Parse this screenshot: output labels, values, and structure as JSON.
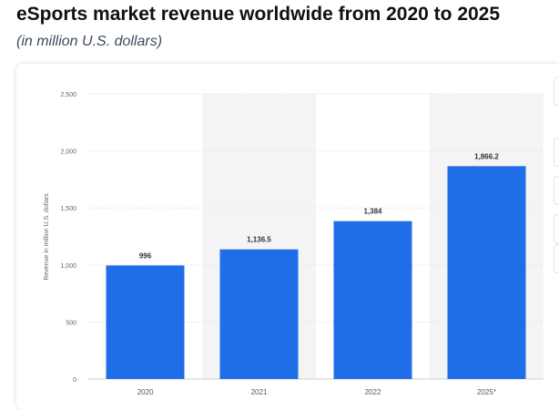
{
  "header": {
    "title": "eSports market revenue worldwide from 2020 to 2025",
    "subtitle": "(in million U.S. dollars)"
  },
  "chart_data": {
    "type": "bar",
    "categories": [
      "2020",
      "2021",
      "2022",
      "2025*"
    ],
    "values": [
      996,
      1136.5,
      1384,
      1866.2
    ],
    "value_labels": [
      "996",
      "1,136.5",
      "1,384",
      "1,866.2"
    ],
    "title": "eSports market revenue worldwide from 2020 to 2025",
    "subtitle": "(in million U.S. dollars)",
    "xlabel": "",
    "ylabel": "Revenue in million U.S. dollars",
    "ylim": [
      0,
      2500
    ],
    "yticks": [
      0,
      500,
      1000,
      1500,
      2000,
      2500
    ],
    "ytick_labels": [
      "0",
      "500",
      "1,000",
      "1,500",
      "2,000",
      "2,500"
    ],
    "grid": true,
    "bar_color": "#1f6ee8",
    "alternating_band_color": "#f4f4f4"
  }
}
